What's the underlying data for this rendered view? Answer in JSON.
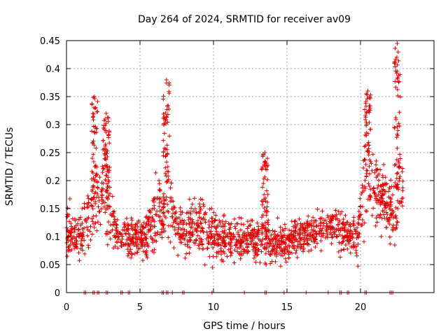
{
  "chart_data": {
    "type": "scatter",
    "title": "Day 264 of 2024, SRMTID for receiver av09",
    "xlabel": "GPS time / hours",
    "ylabel": "SRMTID / TECUs",
    "xlim": [
      0,
      25
    ],
    "ylim": [
      0,
      0.45
    ],
    "xticks": [
      0,
      5,
      10,
      15,
      20
    ],
    "xtick_labels": [
      "0",
      "5",
      "10",
      "15",
      "20"
    ],
    "yticks": [
      0,
      0.05,
      0.1,
      0.15,
      0.2,
      0.25,
      0.3,
      0.35,
      0.4,
      0.45
    ],
    "ytick_labels": [
      "0",
      "0.05",
      "0.1",
      "0.15",
      "0.2",
      "0.25",
      "0.3",
      "0.35",
      "0.4",
      "0.45"
    ],
    "grid": true,
    "marker": "+",
    "series_color": "#e00000",
    "x_range_of_data": [
      0,
      22.9
    ],
    "envelope": {
      "x": [
        0,
        0.3,
        0.6,
        1.0,
        1.5,
        1.9,
        2.2,
        2.6,
        2.8,
        3.2,
        3.7,
        4.2,
        4.8,
        5.2,
        5.6,
        6.0,
        6.3,
        6.6,
        6.8,
        7.2,
        7.6,
        8.0,
        8.5,
        9.0,
        9.5,
        10.0,
        10.5,
        11.0,
        11.5,
        12.0,
        12.5,
        13.0,
        13.5,
        14.0,
        14.5,
        15.0,
        15.5,
        16.0,
        16.5,
        17.0,
        17.5,
        18.0,
        18.5,
        19.0,
        19.5,
        19.8,
        20.0,
        20.3,
        20.6,
        20.9,
        21.3,
        21.7,
        22.0,
        22.3,
        22.5,
        22.7,
        22.9
      ],
      "median": [
        0.12,
        0.11,
        0.1,
        0.1,
        0.13,
        0.17,
        0.16,
        0.19,
        0.17,
        0.12,
        0.1,
        0.1,
        0.1,
        0.1,
        0.11,
        0.13,
        0.15,
        0.13,
        0.19,
        0.14,
        0.11,
        0.1,
        0.12,
        0.12,
        0.12,
        0.1,
        0.1,
        0.1,
        0.09,
        0.09,
        0.1,
        0.09,
        0.1,
        0.09,
        0.09,
        0.09,
        0.1,
        0.1,
        0.11,
        0.11,
        0.12,
        0.12,
        0.12,
        0.1,
        0.1,
        0.1,
        0.15,
        0.19,
        0.22,
        0.18,
        0.18,
        0.16,
        0.14,
        0.14,
        0.18,
        0.21,
        0.17
      ],
      "spread": [
        0.05,
        0.04,
        0.04,
        0.04,
        0.05,
        0.07,
        0.06,
        0.07,
        0.07,
        0.04,
        0.03,
        0.03,
        0.03,
        0.03,
        0.04,
        0.05,
        0.05,
        0.04,
        0.07,
        0.05,
        0.04,
        0.04,
        0.04,
        0.04,
        0.04,
        0.04,
        0.04,
        0.03,
        0.03,
        0.03,
        0.03,
        0.03,
        0.04,
        0.03,
        0.03,
        0.03,
        0.03,
        0.03,
        0.03,
        0.03,
        0.03,
        0.03,
        0.04,
        0.03,
        0.03,
        0.04,
        0.05,
        0.07,
        0.07,
        0.06,
        0.06,
        0.05,
        0.05,
        0.05,
        0.08,
        0.08,
        0.05
      ]
    },
    "peaks": [
      {
        "x": 1.9,
        "y": 0.35
      },
      {
        "x": 2.7,
        "y": 0.32
      },
      {
        "x": 6.8,
        "y": 0.38
      },
      {
        "x": 13.5,
        "y": 0.25
      },
      {
        "x": 20.5,
        "y": 0.36
      },
      {
        "x": 22.5,
        "y": 0.445
      }
    ],
    "zero_points_x": [
      1.2,
      1.3,
      1.8,
      1.9,
      2.1,
      2.2,
      2.7,
      2.8,
      3.7,
      3.8,
      4.2,
      4.3,
      6.5,
      6.6,
      6.8,
      6.9,
      7.2,
      7.9,
      8.0,
      9.9,
      12.1,
      13.5,
      13.6,
      14.8,
      16.3,
      17.8,
      18.6,
      18.7,
      19.1,
      19.2,
      20.3,
      20.4,
      22.0,
      22.1,
      22.2
    ]
  }
}
